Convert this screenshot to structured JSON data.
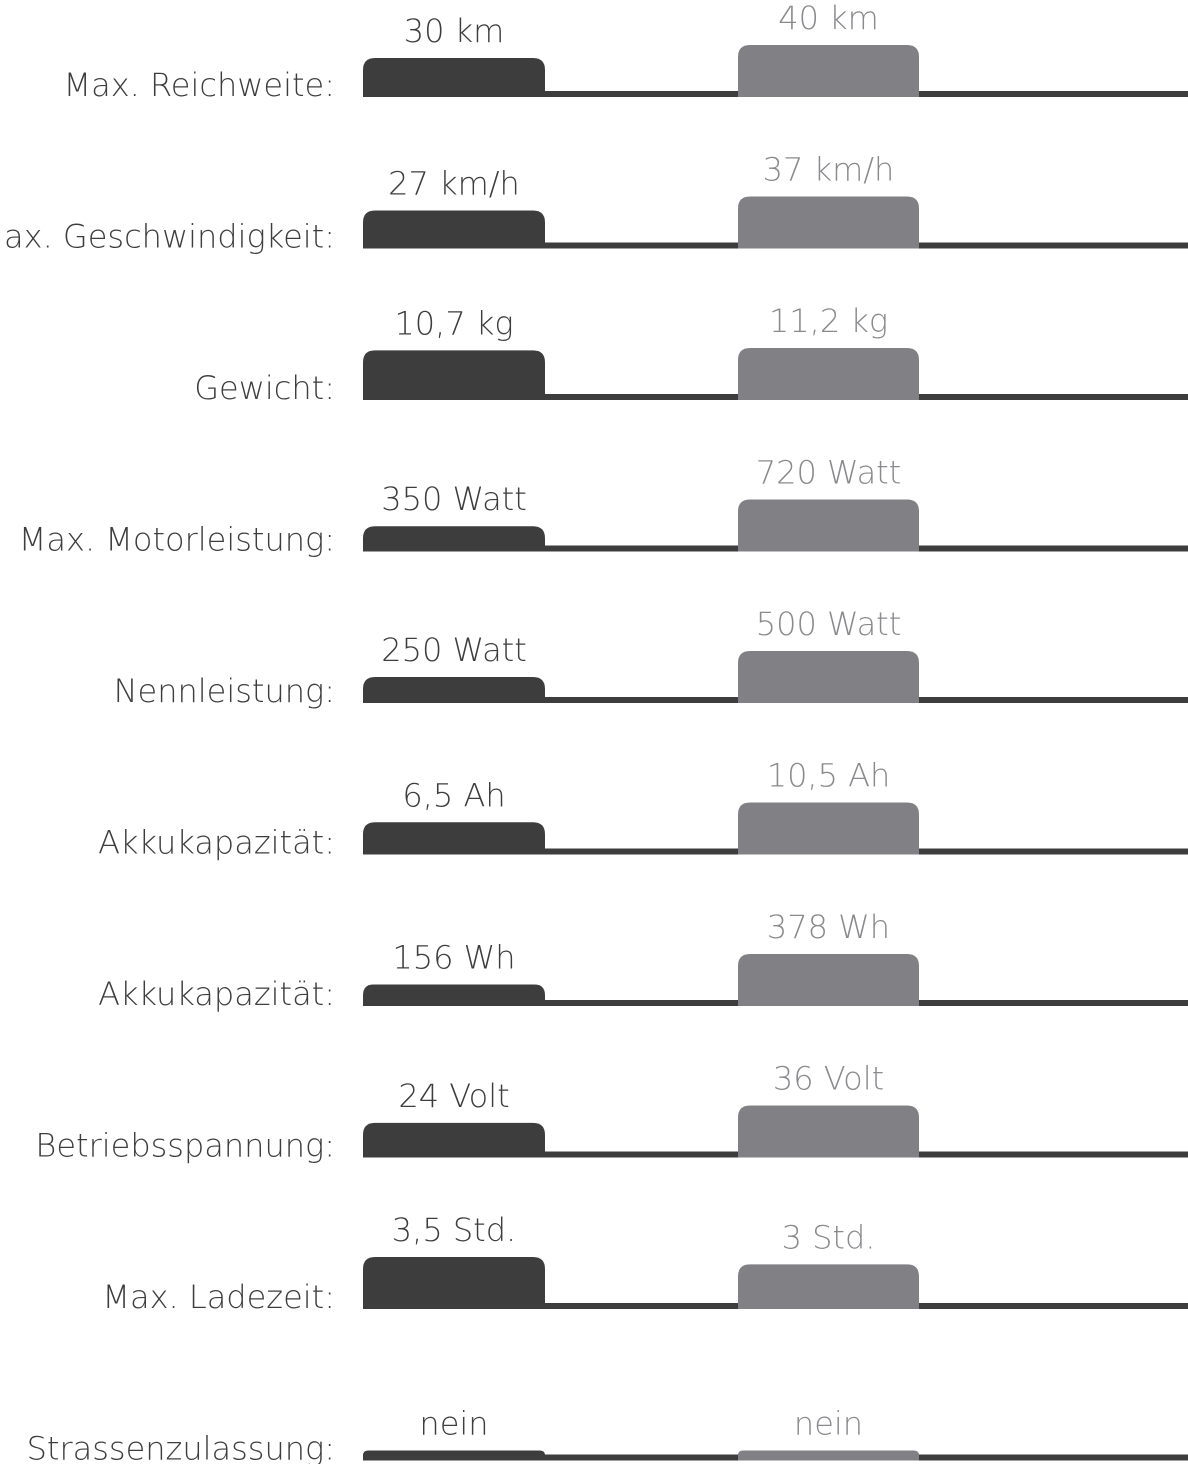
{
  "chart_data": {
    "type": "bar",
    "colors": {
      "series_a": "#3d3d3d",
      "series_b": "#808085",
      "baseline": "#3d3d3d"
    },
    "rows": [
      {
        "label": "Max. Reichweite:",
        "a": {
          "value": 30,
          "text": "30 km"
        },
        "b": {
          "value": 40,
          "text": "40 km"
        }
      },
      {
        "label": "Max. Geschwindigkeit:",
        "a": {
          "value": 27,
          "text": "27 km/h"
        },
        "b": {
          "value": 37,
          "text": "37 km/h"
        }
      },
      {
        "label": "Gewicht:",
        "a": {
          "value": 10.7,
          "text": "10,7 kg"
        },
        "b": {
          "value": 11.2,
          "text": "11,2 kg"
        }
      },
      {
        "label": "Max. Motorleistung:",
        "a": {
          "value": 350,
          "text": "350 Watt"
        },
        "b": {
          "value": 720,
          "text": "720 Watt"
        }
      },
      {
        "label": "Nennleistung:",
        "a": {
          "value": 250,
          "text": "250 Watt"
        },
        "b": {
          "value": 500,
          "text": "500 Watt"
        }
      },
      {
        "label": "Akkukapazität:",
        "a": {
          "value": 6.5,
          "text": "6,5 Ah"
        },
        "b": {
          "value": 10.5,
          "text": "10,5 Ah"
        }
      },
      {
        "label": "Akkukapazität:",
        "a": {
          "value": 156,
          "text": "156 Wh"
        },
        "b": {
          "value": 378,
          "text": "378 Wh"
        }
      },
      {
        "label": "Betriebsspannung:",
        "a": {
          "value": 24,
          "text": "24 Volt"
        },
        "b": {
          "value": 36,
          "text": "36 Volt"
        }
      },
      {
        "label": "Max. Ladezeit:",
        "a": {
          "value": 3.5,
          "text": "3,5 Std."
        },
        "b": {
          "value": 3,
          "text": "3 Std."
        }
      },
      {
        "label": "Strassenzulassung:",
        "a": {
          "value": 0,
          "text": "nein"
        },
        "b": {
          "value": 0,
          "text": "nein"
        }
      }
    ]
  }
}
